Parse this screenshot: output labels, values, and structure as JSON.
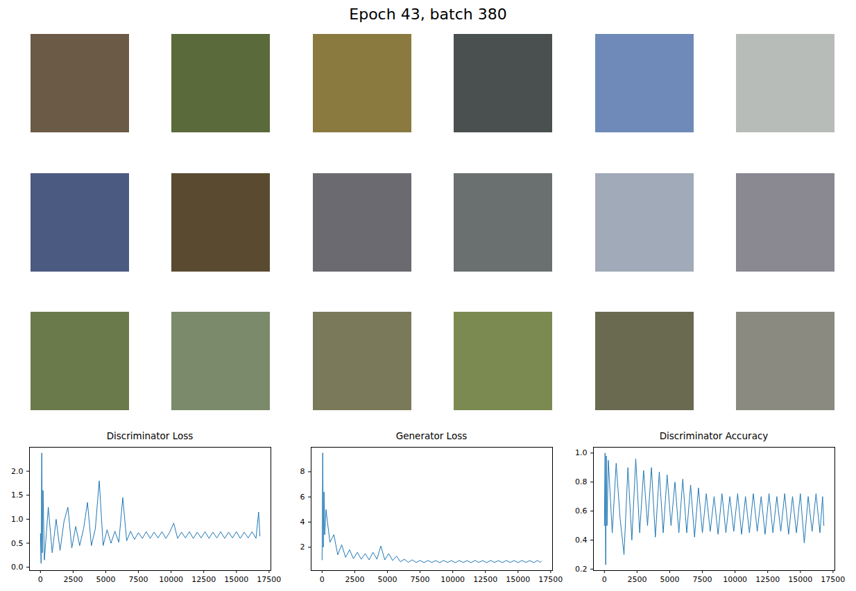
{
  "title": "Epoch 43, batch 380",
  "image_grid": [
    [
      "#6b5a45",
      "#5a6a3a",
      "#8a7a40",
      "#4a5050",
      "#6f8ab8",
      "#b8bcb8"
    ],
    [
      "#4a5a80",
      "#5a4a30",
      "#6a6a70",
      "#6a7070",
      "#a0aab8",
      "#8a8890"
    ],
    [
      "#6a7a4a",
      "#7a8a6a",
      "#7a7a5a",
      "#7a8a50",
      "#6a6a50",
      "#8a8a80"
    ]
  ],
  "chart_data": [
    {
      "type": "line",
      "title": "Discriminator Loss",
      "color": "#1f77b4",
      "x": [
        0,
        50,
        100,
        150,
        200,
        300,
        600,
        900,
        1200,
        1500,
        1800,
        2100,
        2400,
        2700,
        3000,
        3300,
        3600,
        3900,
        4200,
        4500,
        4800,
        5100,
        5400,
        5700,
        6000,
        6300,
        6600,
        6900,
        7200,
        7500,
        7800,
        8100,
        8400,
        8700,
        9000,
        9300,
        9600,
        9900,
        10200,
        10500,
        10800,
        11100,
        11400,
        11700,
        12000,
        12300,
        12600,
        12900,
        13200,
        13500,
        13800,
        14100,
        14400,
        14700,
        15000,
        15300,
        15600,
        15900,
        16200,
        16500,
        16700,
        16800
      ],
      "values": [
        0.7,
        0.08,
        2.38,
        0.3,
        1.6,
        0.15,
        1.25,
        0.3,
        1.0,
        0.35,
        0.95,
        1.25,
        0.4,
        0.85,
        0.45,
        0.8,
        1.35,
        0.45,
        0.8,
        1.8,
        0.45,
        0.78,
        0.5,
        0.75,
        0.52,
        1.45,
        0.55,
        0.75,
        0.58,
        0.72,
        0.6,
        0.74,
        0.6,
        0.73,
        0.61,
        0.74,
        0.6,
        0.73,
        0.92,
        0.6,
        0.73,
        0.61,
        0.74,
        0.6,
        0.73,
        0.61,
        0.74,
        0.6,
        0.73,
        0.61,
        0.74,
        0.6,
        0.73,
        0.61,
        0.74,
        0.6,
        0.73,
        0.61,
        0.74,
        0.6,
        1.15,
        0.65
      ],
      "xlim": [
        -840,
        17640
      ],
      "xticks": [
        0,
        2500,
        5000,
        7500,
        10000,
        12500,
        15000,
        17500
      ],
      "ylim": [
        -0.07,
        2.5
      ],
      "yticks": [
        {
          "value": 0,
          "label": "0.0"
        },
        0.5,
        {
          "value": 1,
          "label": "1.0"
        },
        1.5,
        {
          "value": 2,
          "label": "2.0"
        }
      ]
    },
    {
      "type": "line",
      "title": "Generator Loss",
      "color": "#1f77b4",
      "x": [
        0,
        50,
        100,
        150,
        200,
        300,
        600,
        900,
        1200,
        1500,
        1800,
        2100,
        2400,
        2700,
        3000,
        3300,
        3600,
        3900,
        4200,
        4500,
        4800,
        5100,
        5400,
        5700,
        6000,
        6300,
        6600,
        6900,
        7200,
        7500,
        7800,
        8100,
        8400,
        8700,
        9000,
        9300,
        9600,
        9900,
        10200,
        10500,
        10800,
        11100,
        11400,
        11700,
        12000,
        12300,
        12600,
        12900,
        13200,
        13500,
        13800,
        14100,
        14400,
        14700,
        15000,
        15300,
        15600,
        15900,
        16200,
        16500,
        16700,
        16800
      ],
      "values": [
        1.0,
        9.5,
        2.0,
        6.4,
        3.0,
        5.0,
        2.4,
        3.0,
        1.4,
        2.2,
        1.2,
        1.8,
        1.1,
        1.6,
        1.05,
        1.5,
        1.0,
        1.6,
        1.05,
        2.1,
        1.0,
        1.5,
        0.95,
        1.3,
        0.85,
        1.05,
        0.8,
        1.0,
        0.8,
        0.95,
        0.78,
        0.95,
        0.8,
        0.94,
        0.78,
        0.95,
        0.8,
        0.94,
        0.78,
        0.95,
        0.8,
        0.94,
        0.78,
        0.95,
        0.8,
        0.94,
        0.78,
        0.95,
        0.8,
        0.94,
        0.78,
        0.95,
        0.8,
        0.94,
        0.78,
        0.95,
        0.8,
        0.94,
        0.78,
        0.95,
        0.8,
        0.9
      ],
      "xlim": [
        -840,
        17640
      ],
      "xticks": [
        0,
        2500,
        5000,
        7500,
        10000,
        12500,
        15000,
        17500
      ],
      "ylim": [
        0.15,
        9.95
      ],
      "yticks": [
        2,
        4,
        6,
        8
      ]
    },
    {
      "type": "line",
      "title": "Discriminator Accuracy",
      "color": "#1f77b4",
      "x": [
        0,
        50,
        100,
        150,
        200,
        300,
        600,
        900,
        1200,
        1500,
        1800,
        2100,
        2400,
        2700,
        3000,
        3300,
        3600,
        3900,
        4200,
        4500,
        4800,
        5100,
        5400,
        5700,
        6000,
        6300,
        6600,
        6900,
        7200,
        7500,
        7800,
        8100,
        8400,
        8700,
        9000,
        9300,
        9600,
        9900,
        10200,
        10500,
        10800,
        11100,
        11400,
        11700,
        12000,
        12300,
        12600,
        12900,
        13200,
        13500,
        13800,
        14100,
        14400,
        14700,
        15000,
        15300,
        15600,
        15900,
        16200,
        16500,
        16700,
        16800
      ],
      "values": [
        0.5,
        1.0,
        0.23,
        0.98,
        0.5,
        0.95,
        0.45,
        0.93,
        0.55,
        0.3,
        0.9,
        0.4,
        0.96,
        0.45,
        0.88,
        0.5,
        0.9,
        0.42,
        0.87,
        0.45,
        0.85,
        0.5,
        0.8,
        0.45,
        0.82,
        0.45,
        0.78,
        0.42,
        0.76,
        0.45,
        0.72,
        0.46,
        0.7,
        0.44,
        0.72,
        0.45,
        0.7,
        0.46,
        0.72,
        0.44,
        0.7,
        0.45,
        0.72,
        0.46,
        0.7,
        0.44,
        0.72,
        0.45,
        0.7,
        0.46,
        0.72,
        0.44,
        0.7,
        0.45,
        0.72,
        0.38,
        0.7,
        0.46,
        0.72,
        0.45,
        0.7,
        0.5
      ],
      "xlim": [
        -840,
        17640
      ],
      "xticks": [
        0,
        2500,
        5000,
        7500,
        10000,
        12500,
        15000,
        17500
      ],
      "ylim": [
        0.19,
        1.04
      ],
      "yticks": [
        0.2,
        0.4,
        0.6,
        0.8,
        {
          "value": 1,
          "label": "1.0"
        }
      ]
    }
  ]
}
